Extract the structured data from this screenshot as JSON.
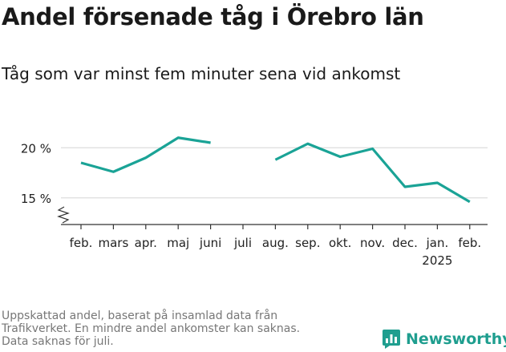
{
  "title": "Andel försenade tåg i Örebro län",
  "subtitle": "Tåg som var minst fem minuter sena vid ankomst",
  "footnote": [
    "Uppskattad andel, baserat på insamlad data från",
    "Trafikverket. En mindre andel ankomster kan saknas.",
    "Data saknas för juli."
  ],
  "brand": "Newsworthy",
  "colors": {
    "line": "#1aa396",
    "grid": "#dddddd",
    "axis": "#333333",
    "brand": "#1f9e8f"
  },
  "chart_data": {
    "type": "line",
    "categories": [
      "feb.",
      "mars",
      "apr.",
      "maj",
      "juni",
      "juli",
      "aug.",
      "sep.",
      "okt.",
      "nov.",
      "dec.",
      "jan.",
      "feb."
    ],
    "year_labels": [
      {
        "index": 11,
        "label": "2025"
      }
    ],
    "series": [
      {
        "values": [
          18.5,
          17.6,
          19.0,
          21.0,
          20.5,
          null,
          18.8,
          20.4,
          19.1,
          19.9,
          16.1,
          16.5,
          14.6
        ]
      }
    ],
    "y_ticks": [
      15,
      20
    ],
    "y_tick_labels": [
      "15 %",
      "20 %"
    ],
    "ylim": [
      12.5,
      22.5
    ],
    "axis_break": true,
    "grid": true,
    "xlabel": "",
    "ylabel": ""
  }
}
